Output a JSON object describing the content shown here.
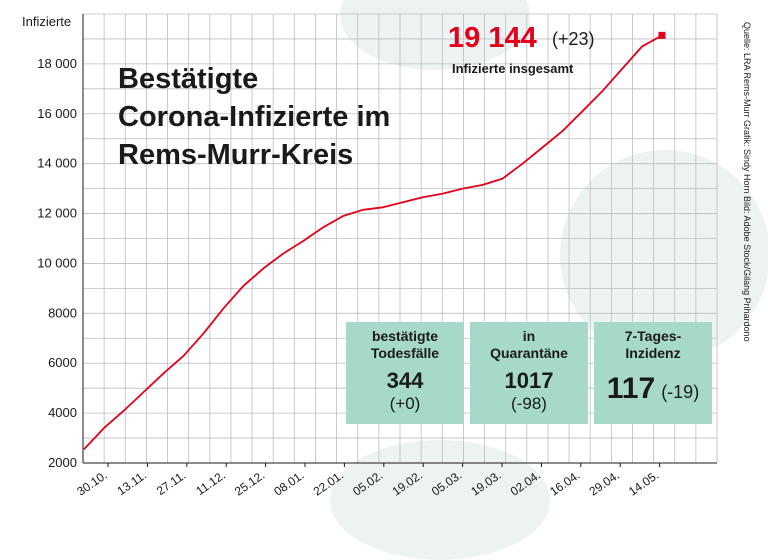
{
  "chart_data": {
    "type": "line",
    "title": "Bestätigte Corona-Infizierte im Rems-Murr-Kreis",
    "title_lines": [
      "Bestätigte",
      "Corona-Infizierte im",
      "Rems-Murr-Kreis"
    ],
    "ylabel": "Infizierte",
    "ylim": [
      2000,
      20000
    ],
    "yticks": [
      2000,
      4000,
      6000,
      8000,
      10000,
      12000,
      14000,
      16000,
      18000
    ],
    "ytick_labels": [
      "2000",
      "4000",
      "6000",
      "8000",
      "10 000",
      "12 000",
      "14 000",
      "16 000",
      "18 000"
    ],
    "xticks": [
      "30.10.",
      "13.11.",
      "27.11.",
      "11.12.",
      "25.12.",
      "08.01.",
      "22.01.",
      "05.02.",
      "19.02.",
      "05.03.",
      "19.03.",
      "02.04.",
      "16.04.",
      "29.04.",
      "14.05."
    ],
    "grid": true,
    "line_color": "#e2001a",
    "series": [
      {
        "values": [
          2550,
          3400,
          4100,
          4850,
          5600,
          6300,
          7200,
          8200,
          9100,
          9800,
          10400,
          10900,
          11450,
          11900,
          12150,
          12250,
          12450,
          12650,
          12800,
          13000,
          13150,
          13400,
          14000,
          14650,
          15300,
          16100,
          16900,
          17800,
          18700,
          19144
        ]
      }
    ]
  },
  "headline": {
    "total": "19 144",
    "change": "(+23)",
    "label": "Infizierte insgesamt"
  },
  "boxes": [
    {
      "label_lines": [
        "bestätigte",
        "Todesfälle"
      ],
      "value": "344",
      "change": "(+0)"
    },
    {
      "label_lines": [
        "in",
        "Quarantäne"
      ],
      "value": "1017",
      "change": "(-98)"
    },
    {
      "label_lines": [
        "7-Tages-",
        "Inzidenz"
      ],
      "value": "117",
      "change": "(-19)"
    }
  ],
  "credits": "Quelle: LRA Rems-Murr   Grafik: Sindy Horn   Bild: Adobe Stock/Gilang Prihardono",
  "colors": {
    "accent": "#e2001a",
    "box": "#a6d9c9",
    "grid": "#bdbdbd"
  }
}
